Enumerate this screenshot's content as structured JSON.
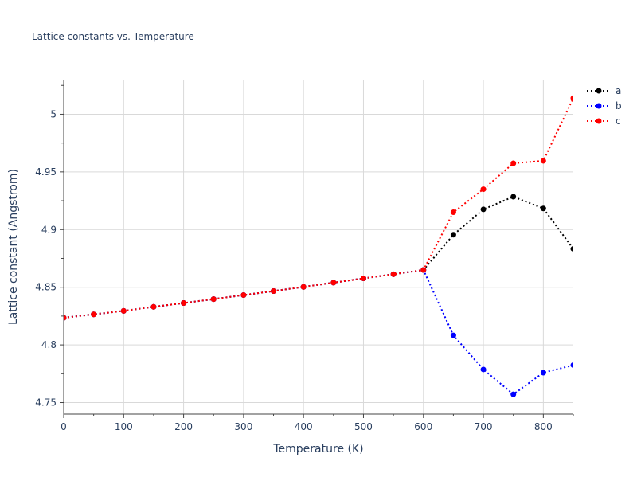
{
  "chart_data": {
    "type": "line",
    "title": "Lattice constants vs. Temperature",
    "xlabel": "Temperature (K)",
    "ylabel": "Lattice constant (Angstrom)",
    "xlim": [
      0,
      850
    ],
    "ylim": [
      4.74,
      5.03
    ],
    "grid": true,
    "legend_position": "top-right",
    "x_ticks": [
      0,
      100,
      200,
      300,
      400,
      500,
      600,
      700,
      800
    ],
    "y_ticks": [
      4.75,
      4.8,
      4.85,
      4.9,
      4.95,
      5.0
    ],
    "x_tick_labels": [
      "0",
      "100",
      "200",
      "300",
      "400",
      "500",
      "600",
      "700",
      "800"
    ],
    "y_tick_labels": [
      "4.75",
      "4.8",
      "4.85",
      "4.9",
      "4.95",
      "5"
    ],
    "x": [
      0,
      50,
      100,
      150,
      200,
      250,
      300,
      350,
      400,
      450,
      500,
      550,
      600,
      650,
      700,
      750,
      800,
      850
    ],
    "series": [
      {
        "name": "a",
        "color": "#000000",
        "values": [
          4.8235,
          4.8265,
          4.8295,
          4.833,
          4.8363,
          4.8397,
          4.8432,
          4.8467,
          4.8503,
          4.854,
          4.8577,
          4.8613,
          4.865,
          4.8955,
          4.9175,
          4.9285,
          4.9183,
          4.8833
        ]
      },
      {
        "name": "b",
        "color": "#0000ff",
        "values": [
          4.8235,
          4.8265,
          4.8295,
          4.833,
          4.8363,
          4.8397,
          4.8432,
          4.8467,
          4.8503,
          4.854,
          4.8577,
          4.8613,
          4.865,
          4.8083,
          4.7787,
          4.7572,
          4.7759,
          4.7825
        ]
      },
      {
        "name": "c",
        "color": "#ff0000",
        "values": [
          4.8235,
          4.8265,
          4.8295,
          4.833,
          4.8363,
          4.8397,
          4.8432,
          4.8467,
          4.8503,
          4.854,
          4.8577,
          4.8613,
          4.865,
          4.915,
          4.935,
          4.9575,
          4.9596,
          5.014
        ]
      }
    ]
  }
}
